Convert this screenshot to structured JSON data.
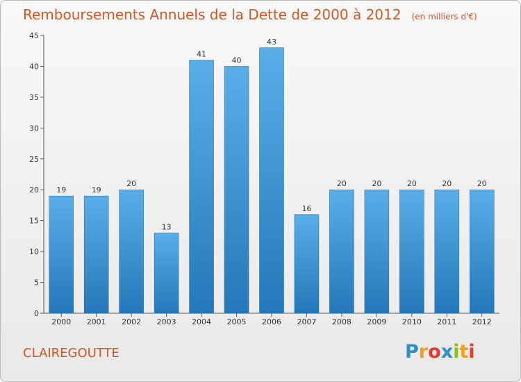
{
  "header": {
    "title": "Remboursements Annuels de la Dette de 2000 à 2012",
    "subtitle": "(en milliers d'€)"
  },
  "footer": {
    "commune": "CLAIREGOUTTE",
    "logo_text": "Proxiti",
    "logo_colors": [
      "#2f8fc8",
      "#f0a01c",
      "#e23b2f",
      "#2f8fc8",
      "#8bbf24",
      "#f0a01c",
      "#e23b2f"
    ]
  },
  "colors": {
    "bar_top": "#5aaee8",
    "bar_bottom": "#2478b9",
    "accent": "#d9551f",
    "axis": "#555555",
    "grid": "#c8c8c8"
  },
  "chart_data": {
    "type": "bar",
    "title": "Remboursements Annuels de la Dette de 2000 à 2012",
    "subtitle": "(en milliers d'€)",
    "xlabel": "",
    "ylabel": "",
    "categories": [
      "2000",
      "2001",
      "2002",
      "2003",
      "2004",
      "2005",
      "2006",
      "2007",
      "2008",
      "2009",
      "2010",
      "2011",
      "2012"
    ],
    "values": [
      19,
      19,
      20,
      13,
      41,
      40,
      43,
      16,
      20,
      20,
      20,
      20,
      20
    ],
    "data_labels": [
      "19",
      "19",
      "20",
      "13",
      "41",
      "40",
      "43",
      "16",
      "20",
      "20",
      "20",
      "20",
      "20"
    ],
    "ylim": [
      0,
      45
    ],
    "yticks": [
      0,
      5,
      10,
      15,
      20,
      25,
      30,
      35,
      40,
      45
    ],
    "grid": false,
    "legend": "none"
  }
}
